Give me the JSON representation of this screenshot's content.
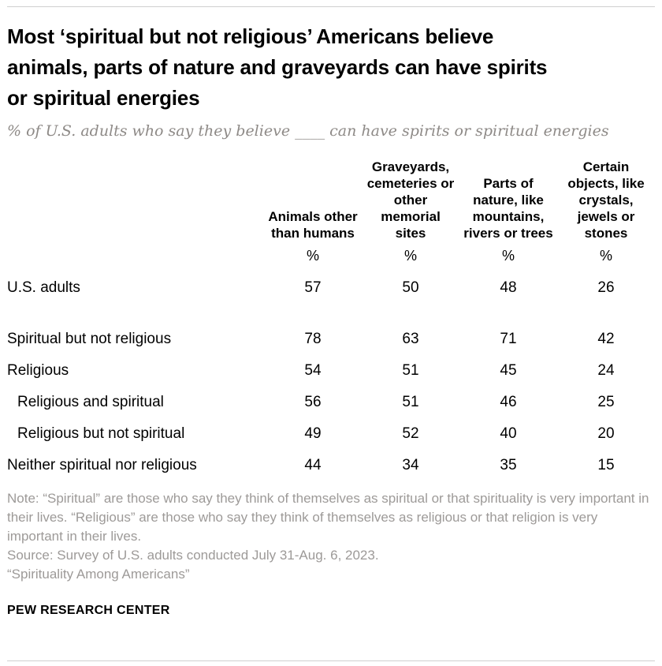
{
  "chart_data": {
    "type": "table",
    "title": "Most ‘spiritual but not religious’ Americans believe animals, parts of nature and graveyards can have spirits or spiritual energies",
    "subtitle": "% of U.S. adults who say they believe ____ can have spirits or spiritual energies",
    "columns": [
      "Animals other than humans",
      "Graveyards, cemeteries or other memorial sites",
      "Parts of nature, like mountains, rivers or trees",
      "Certain objects, like crystals, jewels or stones"
    ],
    "unit_row": [
      "%",
      "%",
      "%",
      "%"
    ],
    "rows": [
      {
        "label": "U.S. adults",
        "values": [
          57,
          50,
          48,
          26
        ],
        "indent": false,
        "gap_after": true
      },
      {
        "label": "Spiritual but not religious",
        "values": [
          78,
          63,
          71,
          42
        ],
        "indent": false,
        "gap_after": false
      },
      {
        "label": "Religious",
        "values": [
          54,
          51,
          45,
          24
        ],
        "indent": false,
        "gap_after": false
      },
      {
        "label": "Religious and spiritual",
        "values": [
          56,
          51,
          46,
          25
        ],
        "indent": true,
        "gap_after": false
      },
      {
        "label": "Religious but not spiritual",
        "values": [
          49,
          52,
          40,
          20
        ],
        "indent": true,
        "gap_after": false
      },
      {
        "label": "Neither spiritual nor religious",
        "values": [
          44,
          34,
          35,
          15
        ],
        "indent": false,
        "gap_after": false
      }
    ]
  },
  "footer": {
    "note": "Note: “Spiritual” are those who say they think of themselves as spiritual or that spirituality is very important in their lives. “Religious” are those who say they think of themselves as religious or that religion is very important in their lives.",
    "source": "Source: Survey of U.S. adults conducted July 31-Aug. 6, 2023.",
    "report": "“Spirituality Among Americans”",
    "brand": "PEW RESEARCH CENTER"
  },
  "colors": {
    "rule": "#cfcfcf",
    "title_text": "#000000",
    "subtitle_text": "#8e8a87",
    "note_text": "#9d9a98"
  }
}
